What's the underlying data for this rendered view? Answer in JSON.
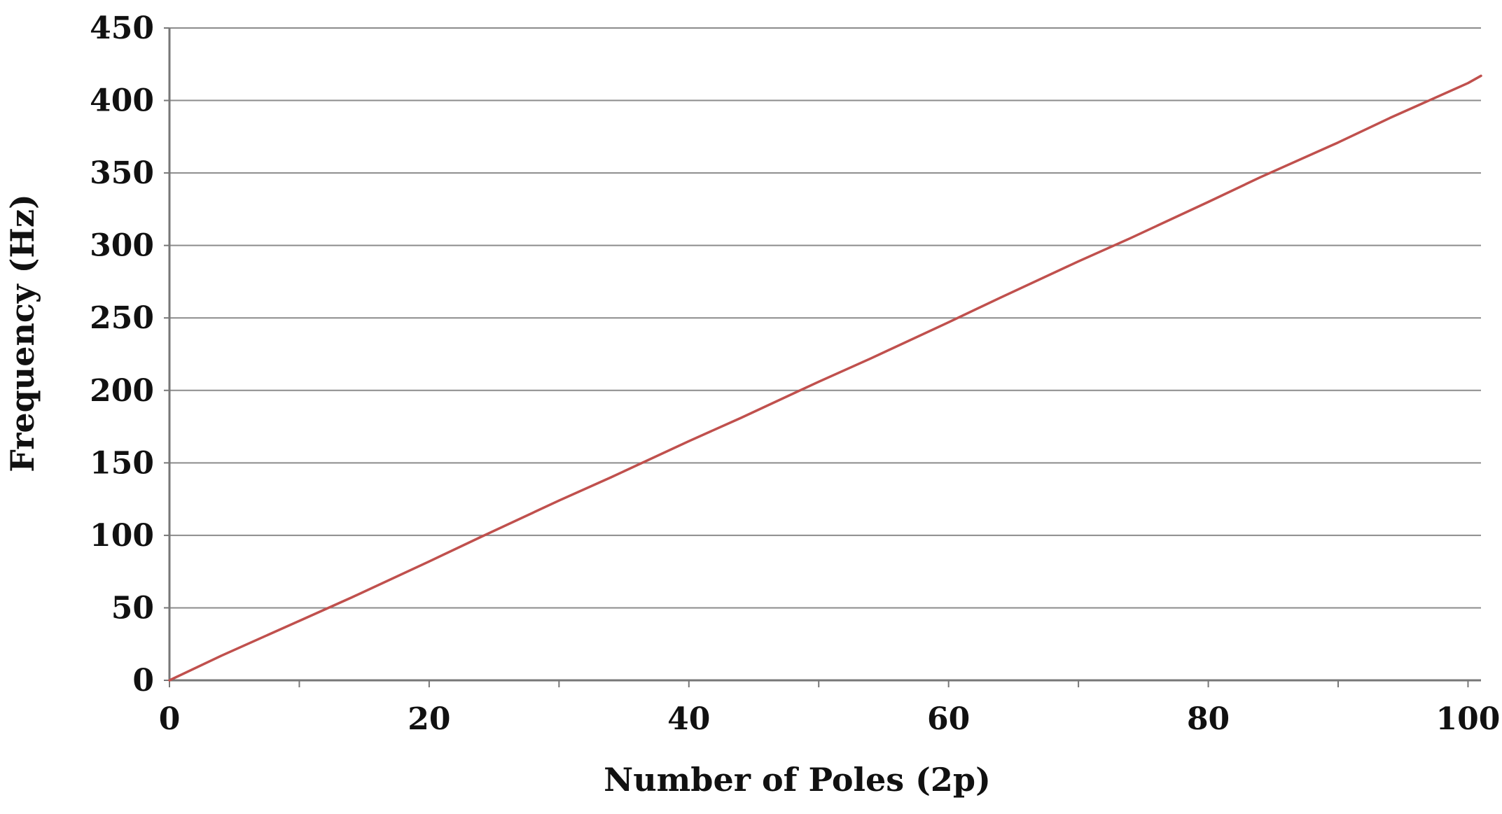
{
  "chart_data": {
    "type": "line",
    "title": "",
    "xlabel": "Number of Poles (2p)",
    "ylabel": "Frequency (Hz)",
    "xlim": [
      0,
      101
    ],
    "ylim": [
      0,
      450
    ],
    "xticks": [
      0,
      20,
      40,
      60,
      80,
      100
    ],
    "yticks": [
      0,
      50,
      100,
      150,
      200,
      250,
      300,
      350,
      400,
      450
    ],
    "grid": "horizontal",
    "legend": "none",
    "series": [
      {
        "color": "#C0504D",
        "x": [
          0,
          4,
          10,
          14,
          20,
          24,
          30,
          34,
          40,
          44,
          50,
          54,
          60,
          64,
          70,
          74,
          80,
          84,
          90,
          94,
          100,
          101
        ],
        "y": [
          0,
          17,
          41,
          57,
          82,
          99,
          124,
          140,
          165,
          181,
          206,
          222,
          247,
          264,
          289,
          305,
          330,
          347,
          371,
          388,
          412,
          417
        ]
      }
    ]
  }
}
